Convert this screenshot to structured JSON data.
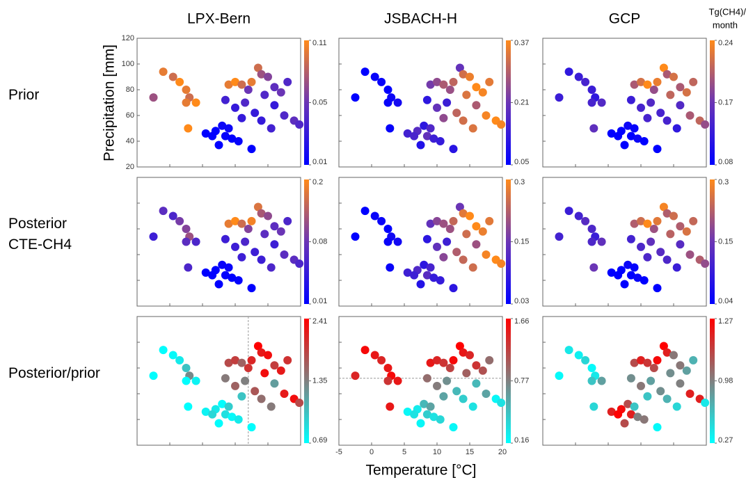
{
  "columns": [
    "LPX-Bern",
    "JSBACH-H",
    "GCP"
  ],
  "rows": [
    [
      "Prior"
    ],
    [
      "Posterior",
      "CTE-CH4"
    ],
    [
      "Posterior/prior"
    ]
  ],
  "colorbar_label": [
    "Tg(CH4)/",
    "month"
  ],
  "axes": {
    "xlabel": "Temperature [°C]",
    "ylabel": "Precipitation [mm]",
    "xlim": [
      -5,
      20
    ],
    "ylim": [
      20,
      120
    ],
    "xticks": [
      -5,
      0,
      5,
      10,
      15,
      20
    ],
    "yticks": [
      20,
      40,
      60,
      80,
      100,
      120
    ]
  },
  "stations": {
    "temperature": [
      5.5,
      7,
      8,
      6.5,
      8.5,
      9.5,
      7.5,
      9,
      10.5,
      12.5,
      -1,
      0.5,
      1.5,
      2.5,
      3,
      2.5,
      4,
      -2.5,
      2.8,
      9,
      10,
      11,
      12.5,
      13.5,
      14,
      15,
      12,
      14.5,
      16,
      17,
      18,
      8.5,
      10,
      11.5,
      13,
      14,
      15.5,
      17.5,
      11,
      19,
      19.8,
      16
    ],
    "precipitation": [
      46,
      48,
      52,
      44,
      44,
      42,
      37,
      50,
      40,
      34,
      94,
      90,
      86,
      80,
      74,
      70,
      70,
      74,
      50,
      84,
      86,
      84,
      86,
      97,
      92,
      90,
      80,
      76,
      82,
      78,
      86,
      72,
      66,
      70,
      62,
      56,
      50,
      60,
      58,
      56,
      53,
      68
    ]
  },
  "chart_data": [
    {
      "type": "scatter",
      "cticks": [
        0.01,
        0.05,
        0.11
      ],
      "colormap": [
        "#0000ff",
        "#6a35b5",
        "#ff8a1a"
      ],
      "values": [
        0.01,
        0.01,
        0.015,
        0.01,
        0.012,
        0.01,
        0.01,
        0.015,
        0.012,
        0.01,
        0.1,
        0.09,
        0.11,
        0.1,
        0.09,
        0.1,
        0.11,
        0.07,
        0.11,
        0.1,
        0.11,
        0.09,
        0.1,
        0.09,
        0.07,
        0.06,
        0.05,
        0.04,
        0.045,
        0.05,
        0.04,
        0.035,
        0.03,
        0.04,
        0.03,
        0.03,
        0.035,
        0.04,
        0.03,
        0.045,
        0.04,
        0.03
      ]
    },
    {
      "type": "scatter",
      "cticks": [
        0.05,
        0.21,
        0.37
      ],
      "colormap": [
        "#0000ff",
        "#6a35b5",
        "#ff8a1a"
      ],
      "values": [
        0.15,
        0.18,
        0.12,
        0.16,
        0.2,
        0.14,
        0.1,
        0.17,
        0.13,
        0.11,
        0.05,
        0.06,
        0.06,
        0.05,
        0.07,
        0.06,
        0.08,
        0.05,
        0.06,
        0.22,
        0.25,
        0.28,
        0.3,
        0.2,
        0.32,
        0.35,
        0.26,
        0.33,
        0.37,
        0.36,
        0.34,
        0.12,
        0.2,
        0.14,
        0.3,
        0.32,
        0.33,
        0.36,
        0.25,
        0.37,
        0.36,
        0.28
      ]
    },
    {
      "type": "scatter",
      "cticks": [
        0.08,
        0.17,
        0.24
      ],
      "colormap": [
        "#0000ff",
        "#6a35b5",
        "#ff8a1a"
      ],
      "values": [
        0.08,
        0.08,
        0.09,
        0.08,
        0.08,
        0.09,
        0.08,
        0.085,
        0.08,
        0.08,
        0.12,
        0.13,
        0.14,
        0.13,
        0.12,
        0.14,
        0.15,
        0.13,
        0.16,
        0.2,
        0.22,
        0.24,
        0.23,
        0.24,
        0.2,
        0.22,
        0.19,
        0.21,
        0.2,
        0.22,
        0.21,
        0.13,
        0.14,
        0.15,
        0.14,
        0.14,
        0.12,
        0.2,
        0.14,
        0.21,
        0.19,
        0.15
      ]
    },
    {
      "type": "scatter",
      "cticks": [
        0.01,
        0.08,
        0.2
      ],
      "colormap": [
        "#0000ff",
        "#6a35b5",
        "#ff8a1a"
      ],
      "values": [
        0.01,
        0.01,
        0.015,
        0.01,
        0.012,
        0.01,
        0.01,
        0.015,
        0.012,
        0.01,
        0.07,
        0.06,
        0.09,
        0.1,
        0.12,
        0.07,
        0.06,
        0.05,
        0.06,
        0.18,
        0.2,
        0.16,
        0.19,
        0.17,
        0.13,
        0.11,
        0.1,
        0.07,
        0.07,
        0.08,
        0.06,
        0.05,
        0.05,
        0.06,
        0.05,
        0.05,
        0.06,
        0.07,
        0.05,
        0.07,
        0.06,
        0.05
      ]
    },
    {
      "type": "scatter",
      "cticks": [
        0.03,
        0.15,
        0.3
      ],
      "colormap": [
        "#0000ff",
        "#6a35b5",
        "#ff8a1a"
      ],
      "values": [
        0.1,
        0.12,
        0.08,
        0.1,
        0.13,
        0.09,
        0.07,
        0.11,
        0.09,
        0.08,
        0.03,
        0.04,
        0.04,
        0.03,
        0.05,
        0.04,
        0.05,
        0.03,
        0.04,
        0.14,
        0.18,
        0.2,
        0.24,
        0.15,
        0.27,
        0.3,
        0.2,
        0.25,
        0.3,
        0.28,
        0.27,
        0.08,
        0.14,
        0.1,
        0.22,
        0.24,
        0.25,
        0.29,
        0.18,
        0.3,
        0.29,
        0.2
      ]
    },
    {
      "type": "scatter",
      "cticks": [
        0.04,
        0.15,
        0.3
      ],
      "colormap": [
        "#0000ff",
        "#6a35b5",
        "#ff8a1a"
      ],
      "values": [
        0.04,
        0.04,
        0.05,
        0.04,
        0.04,
        0.05,
        0.04,
        0.045,
        0.04,
        0.04,
        0.1,
        0.11,
        0.13,
        0.12,
        0.1,
        0.12,
        0.14,
        0.11,
        0.15,
        0.22,
        0.25,
        0.3,
        0.27,
        0.29,
        0.22,
        0.25,
        0.2,
        0.23,
        0.22,
        0.26,
        0.24,
        0.11,
        0.12,
        0.14,
        0.13,
        0.12,
        0.1,
        0.2,
        0.12,
        0.22,
        0.19,
        0.13
      ]
    },
    {
      "type": "scatter",
      "cticks": [
        0.69,
        1.35,
        2.41
      ],
      "colormap": [
        "#00ffff",
        "#808080",
        "#ff0000"
      ],
      "crosshair_x": 12,
      "values": [
        0.75,
        0.8,
        0.7,
        0.9,
        0.85,
        0.72,
        0.7,
        0.95,
        0.8,
        0.7,
        0.7,
        0.72,
        0.8,
        1.0,
        1.3,
        0.7,
        0.75,
        0.7,
        0.69,
        1.8,
        1.9,
        1.6,
        2.1,
        2.4,
        2.2,
        2.3,
        2.0,
        2.3,
        1.9,
        2.2,
        2.0,
        1.4,
        1.6,
        1.35,
        1.7,
        1.5,
        1.4,
        2.2,
        1.0,
        2.3,
        1.8,
        1.2
      ]
    },
    {
      "type": "scatter",
      "cticks": [
        0.16,
        0.77,
        1.66
      ],
      "colormap": [
        "#00ffff",
        "#808080",
        "#ff0000"
      ],
      "crosshair_y": 72,
      "values": [
        0.2,
        0.25,
        0.5,
        0.3,
        0.4,
        0.3,
        0.2,
        0.6,
        0.35,
        0.2,
        1.6,
        1.5,
        1.4,
        1.5,
        1.6,
        1.3,
        1.5,
        1.4,
        1.5,
        1.5,
        1.4,
        1.3,
        1.6,
        1.66,
        1.5,
        1.4,
        1.2,
        1.0,
        1.3,
        1.1,
        0.9,
        0.9,
        0.8,
        0.7,
        0.5,
        0.4,
        0.3,
        0.6,
        0.6,
        0.2,
        0.3,
        0.5
      ]
    },
    {
      "type": "scatter",
      "cticks": [
        0.27,
        0.98,
        1.27
      ],
      "colormap": [
        "#00ffff",
        "#808080",
        "#ff0000"
      ],
      "values": [
        1.2,
        1.25,
        1.1,
        1.27,
        1.2,
        0.98,
        1.1,
        0.6,
        1.0,
        0.3,
        0.4,
        0.35,
        0.5,
        0.3,
        0.4,
        0.6,
        0.8,
        0.3,
        0.5,
        1.1,
        1.2,
        1.15,
        1.25,
        1.27,
        1.2,
        1.0,
        1.1,
        0.9,
        1.0,
        0.8,
        0.7,
        0.9,
        1.0,
        0.8,
        0.9,
        0.7,
        0.5,
        1.2,
        0.6,
        1.2,
        0.4,
        0.98
      ]
    }
  ]
}
